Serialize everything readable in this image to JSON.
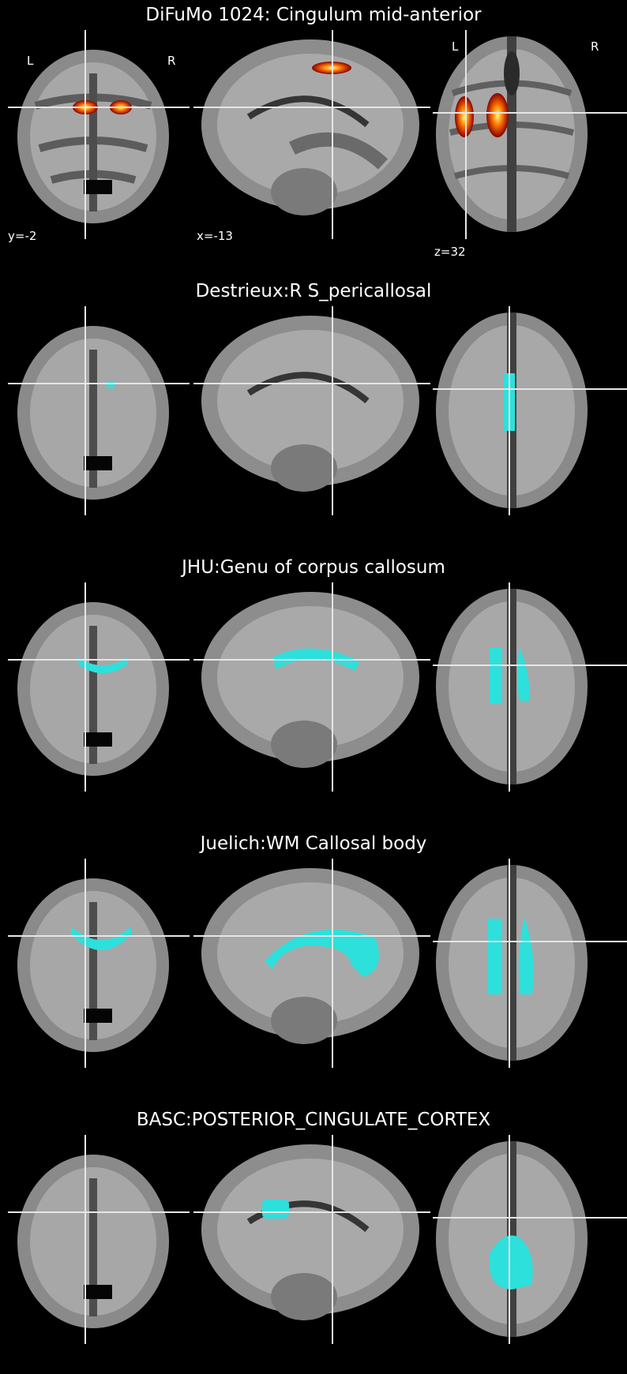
{
  "colors": {
    "background": "#000000",
    "overlay_cyan": "#2de0dc",
    "crosshair": "#e6e6e6",
    "heat_low": "#8b0000",
    "heat_mid": "#ff4500",
    "heat_high": "#ffff66"
  },
  "panels": [
    {
      "title": "DiFuMo 1024: Cingulum mid-anterior",
      "overlay": "heat",
      "labels": {
        "left": "L",
        "right": "R",
        "y": "y=-2",
        "x": "x=-13",
        "z": "z=32"
      }
    },
    {
      "title": "Destrieux:R S_pericallosal",
      "overlay": "cyan"
    },
    {
      "title": "JHU:Genu of corpus callosum",
      "overlay": "cyan"
    },
    {
      "title": "Juelich:WM Callosal body",
      "overlay": "cyan"
    },
    {
      "title": "BASC:POSTERIOR_CINGULATE_CORTEX",
      "overlay": "cyan"
    }
  ]
}
